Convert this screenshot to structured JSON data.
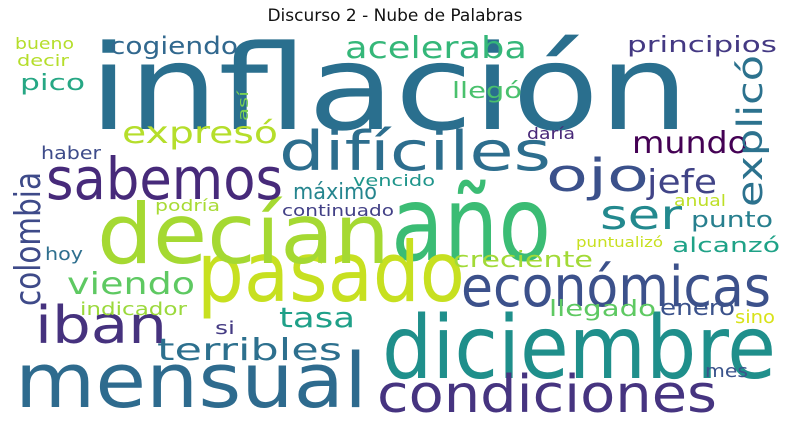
{
  "title": "Discurso 2 - Nube de Palabras",
  "words": [
    {
      "id": "inflacion",
      "text": "inflación",
      "color": "#2a6f8e"
    },
    {
      "id": "mensual",
      "text": "mensual",
      "color": "#2e6b8e"
    },
    {
      "id": "diciembre",
      "text": "diciembre",
      "color": "#1f8f8b"
    },
    {
      "id": "ano",
      "text": "año",
      "color": "#3bbc74"
    },
    {
      "id": "pasado",
      "text": "pasado",
      "color": "#c7e020"
    },
    {
      "id": "decian",
      "text": "decían",
      "color": "#a5d932"
    },
    {
      "id": "sabemos",
      "text": "sabemos",
      "color": "#472a7a"
    },
    {
      "id": "dificiles",
      "text": "difíciles",
      "color": "#2d6e8e"
    },
    {
      "id": "economicas",
      "text": "económicas",
      "color": "#3c518b"
    },
    {
      "id": "condiciones",
      "text": "condiciones",
      "color": "#463480"
    },
    {
      "id": "iban",
      "text": "iban",
      "color": "#46327e"
    },
    {
      "id": "ojo",
      "text": "ojo",
      "color": "#3b518b"
    },
    {
      "id": "ser",
      "text": "ser",
      "color": "#23898e"
    },
    {
      "id": "aceleraba",
      "text": "aceleraba",
      "color": "#35b779"
    },
    {
      "id": "expreso",
      "text": "expresó",
      "color": "#b5de2b"
    },
    {
      "id": "mundo",
      "text": "mundo",
      "color": "#440154"
    },
    {
      "id": "cogiendo",
      "text": "cogiendo",
      "color": "#31688e"
    },
    {
      "id": "principios",
      "text": "principios",
      "color": "#443983"
    },
    {
      "id": "explico",
      "text": "explicó",
      "color": "#2c728e"
    },
    {
      "id": "jefe",
      "text": "jefe",
      "color": "#414487"
    },
    {
      "id": "colombia",
      "text": "colombia",
      "color": "#3e4a89"
    },
    {
      "id": "tasa",
      "text": "tasa",
      "color": "#1fa088"
    },
    {
      "id": "terribles",
      "text": "terribles",
      "color": "#2d708e"
    },
    {
      "id": "viendo",
      "text": "viendo",
      "color": "#5ec962"
    },
    {
      "id": "llego",
      "text": "llegó",
      "color": "#4ac16d"
    },
    {
      "id": "pico",
      "text": "pico",
      "color": "#26a784"
    },
    {
      "id": "maximo",
      "text": "máximo",
      "color": "#25858e"
    },
    {
      "id": "punto",
      "text": "punto",
      "color": "#277f8e"
    },
    {
      "id": "alcanzo",
      "text": "alcanzó",
      "color": "#1fa287"
    },
    {
      "id": "creciente",
      "text": "creciente",
      "color": "#a2da37"
    },
    {
      "id": "llegado",
      "text": "llegado",
      "color": "#5ec962"
    },
    {
      "id": "enero",
      "text": "enero",
      "color": "#3b528b"
    },
    {
      "id": "bueno",
      "text": "bueno",
      "color": "#b5de2b"
    },
    {
      "id": "decir",
      "text": "decir",
      "color": "#b5de2b"
    },
    {
      "id": "asi",
      "text": "así",
      "color": "#7ad151"
    },
    {
      "id": "haber",
      "text": "haber",
      "color": "#3e4c8a"
    },
    {
      "id": "daria",
      "text": "daría",
      "color": "#482878"
    },
    {
      "id": "vencido",
      "text": "vencido",
      "color": "#1f958b"
    },
    {
      "id": "podria",
      "text": "podría",
      "color": "#a8db34"
    },
    {
      "id": "continuado",
      "text": "continuado",
      "color": "#424086"
    },
    {
      "id": "anual",
      "text": "anual",
      "color": "#bddf26"
    },
    {
      "id": "puntualizo",
      "text": "puntualizó",
      "color": "#c8e020"
    },
    {
      "id": "hoy",
      "text": "hoy",
      "color": "#2e6f8e"
    },
    {
      "id": "indicador",
      "text": "indicador",
      "color": "#9bd93c"
    },
    {
      "id": "si",
      "text": "si",
      "color": "#443a83"
    },
    {
      "id": "sino",
      "text": "sino",
      "color": "#d8e219"
    },
    {
      "id": "mes",
      "text": "mes",
      "color": "#3a538b"
    }
  ]
}
